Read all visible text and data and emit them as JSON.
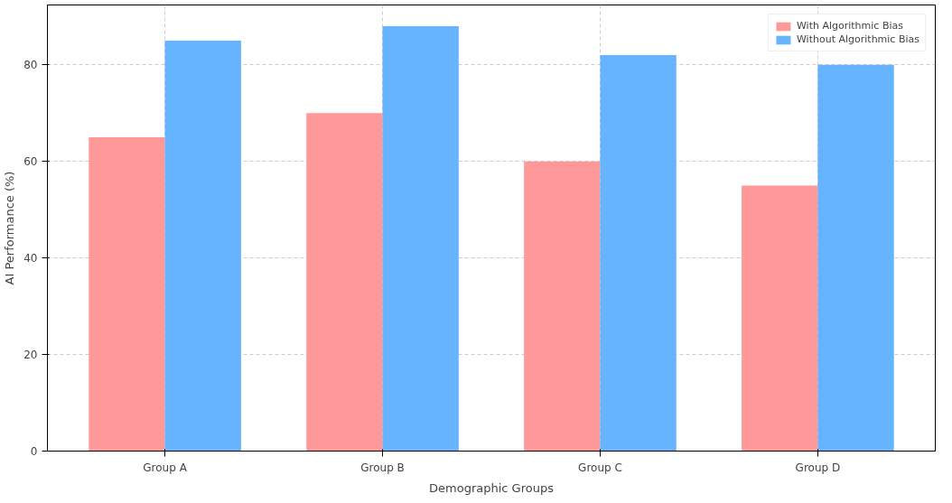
{
  "chart_data": {
    "type": "bar",
    "xlabel": "Demographic Groups",
    "ylabel": "AI Performance (%)",
    "categories": [
      "Group A",
      "Group B",
      "Group C",
      "Group D"
    ],
    "series": [
      {
        "name": "With Algorithmic Bias",
        "color": "#ff9999",
        "values": [
          65,
          70,
          60,
          55
        ]
      },
      {
        "name": "Without Algorithmic Bias",
        "color": "#66b3ff",
        "values": [
          85,
          88,
          82,
          80
        ]
      }
    ],
    "ylim": [
      0,
      92.4
    ],
    "yticks": [
      0,
      20,
      40,
      60,
      80
    ],
    "grid": true,
    "legend": "top right"
  }
}
